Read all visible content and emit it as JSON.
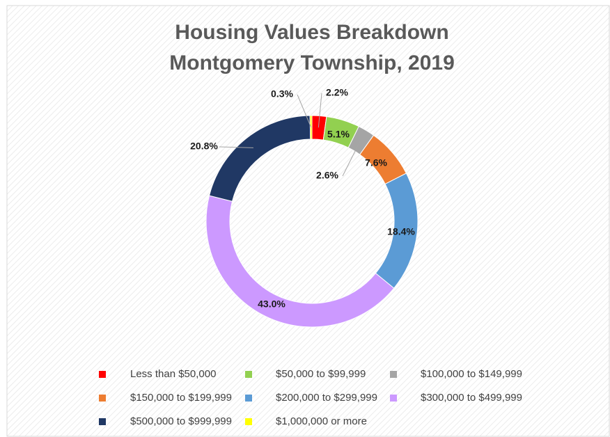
{
  "chart_data": {
    "type": "donut",
    "title": [
      "Housing Values Breakdown",
      "Montgomery Township, 2019"
    ],
    "categories": [
      "Less than $50,000",
      "$50,000 to $99,999",
      "$100,000 to $149,999",
      "$150,000 to $199,999",
      "$200,000 to $299,999",
      "$300,000 to $499,999",
      "$500,000 to $999,999",
      "$1,000,000 or more"
    ],
    "values": [
      2.2,
      5.1,
      2.6,
      7.6,
      18.4,
      43.0,
      20.8,
      0.3
    ],
    "value_labels": [
      "2.2%",
      "5.1%",
      "2.6%",
      "7.6%",
      "18.4%",
      "43.0%",
      "20.8%",
      "0.3%"
    ],
    "colors": [
      "#ff0000",
      "#92d050",
      "#a5a5a5",
      "#ed7d31",
      "#5b9bd5",
      "#cc99ff",
      "#203864",
      "#ffff00"
    ],
    "legend": "bottom"
  }
}
